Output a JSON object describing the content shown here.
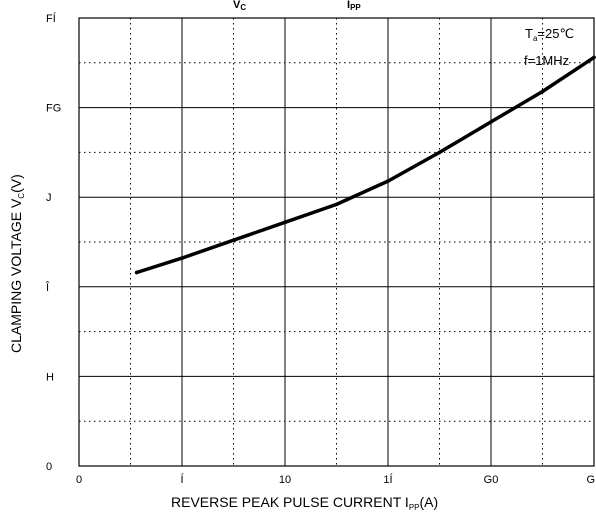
{
  "chart_data": {
    "type": "line",
    "xlabel_main": "REVERSE PEAK PULSE CURRENT  I",
    "xlabel_sub": "PP",
    "xlabel_tail": "(A)",
    "ylabel_main": "CLAMPING VOLTAGE  V",
    "ylabel_sub": "C",
    "ylabel_tail": "(V)",
    "top_fragments": [
      {
        "main": "V",
        "sub": "C"
      },
      {
        "main": "I",
        "sub": "PP"
      }
    ],
    "xlim": [
      0,
      25
    ],
    "ylim": [
      0,
      25
    ],
    "x_ticks": [
      {
        "value": 0,
        "label": "0"
      },
      {
        "value": 5,
        "label": "Í"
      },
      {
        "value": 10,
        "label": "10"
      },
      {
        "value": 15,
        "label": "1Í"
      },
      {
        "value": 20,
        "label": "G0"
      },
      {
        "value": 25,
        "label": "G"
      }
    ],
    "y_ticks": [
      {
        "value": 0,
        "label": "0"
      },
      {
        "value": 5,
        "label": "H"
      },
      {
        "value": 10,
        "label": "Î"
      },
      {
        "value": 15,
        "label": "J"
      },
      {
        "value": 20,
        "label": "FG"
      },
      {
        "value": 25,
        "label": "FÍ"
      }
    ],
    "minor_x": [
      2.5,
      7.5,
      12.5,
      17.5,
      22.5
    ],
    "minor_y": [
      2.5,
      7.5,
      12.5,
      17.5,
      22.5
    ],
    "grid": true,
    "series": [
      {
        "x": [
          2.8,
          5.0,
          7.5,
          10.0,
          12.5,
          15.0,
          17.5,
          20.0,
          22.5,
          25.0
        ],
        "y": [
          10.8,
          11.6,
          12.6,
          13.6,
          14.6,
          15.9,
          17.5,
          19.2,
          20.9,
          22.8
        ]
      }
    ],
    "conditions": {
      "ta_main": "T",
      "ta_sub": "a",
      "ta_tail": "=25℃",
      "freq": "f=1MHz"
    }
  }
}
